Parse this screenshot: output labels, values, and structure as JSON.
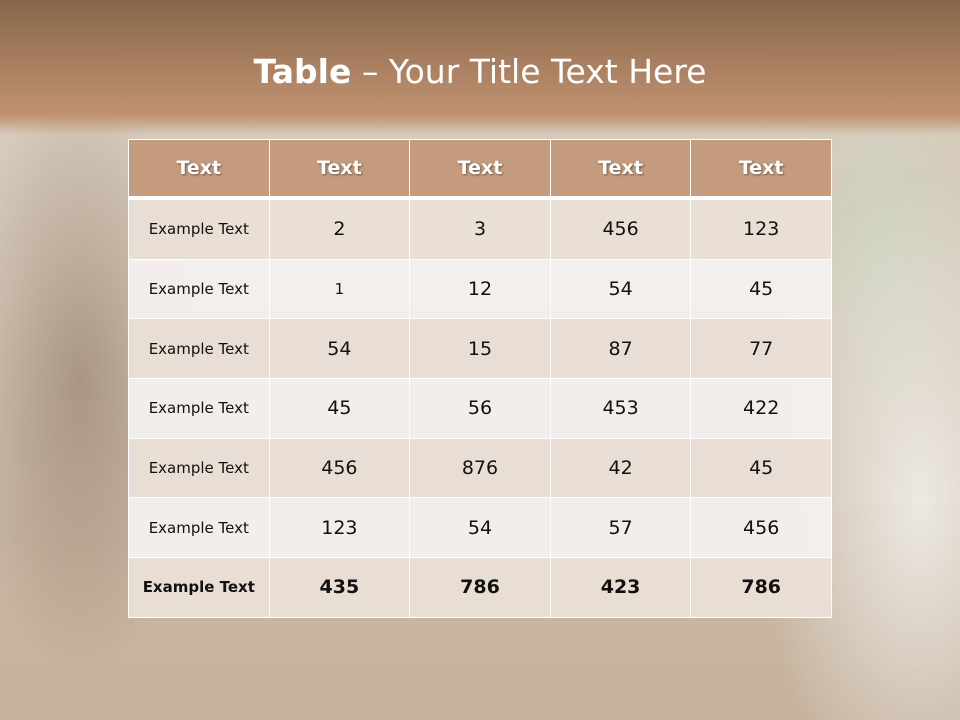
{
  "title": {
    "bold": "Table",
    "rest": " – Your Title Text Here"
  },
  "table": {
    "headers": [
      "Text",
      "Text",
      "Text",
      "Text",
      "Text"
    ],
    "rows": [
      [
        "Example Text",
        "2",
        "3",
        "456",
        "123"
      ],
      [
        "Example Text",
        "1",
        "12",
        "54",
        "45"
      ],
      [
        "Example Text",
        "54",
        "15",
        "87",
        "77"
      ],
      [
        "Example Text",
        "45",
        "56",
        "453",
        "422"
      ],
      [
        "Example Text",
        "456",
        "876",
        "42",
        "45"
      ],
      [
        "Example Text",
        "123",
        "54",
        "57",
        "456"
      ],
      [
        "Example Text",
        "435",
        "786",
        "423",
        "786"
      ]
    ]
  },
  "colors": {
    "header": "#c49b7c",
    "row_odd": "#e9dfd6",
    "row_even": "#f4f0ed",
    "top_band": "#a77e5f"
  }
}
